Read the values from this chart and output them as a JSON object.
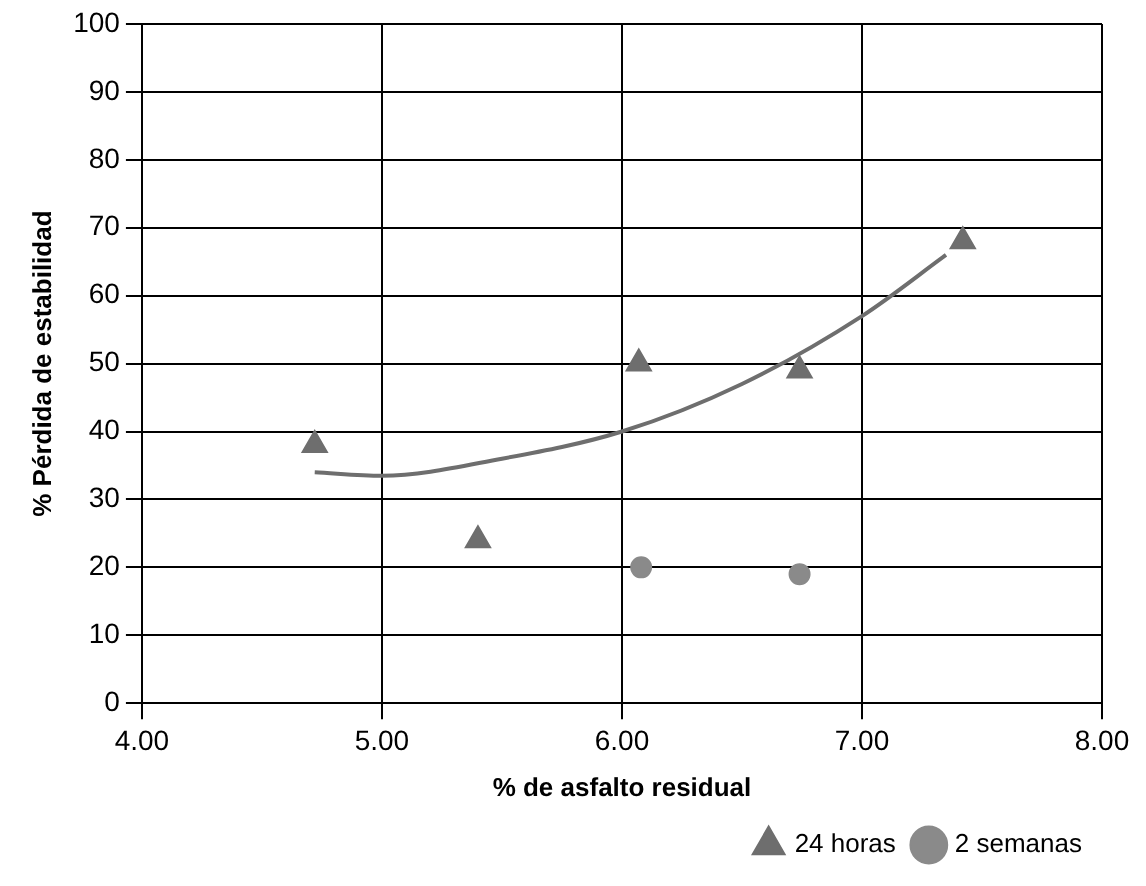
{
  "chart_data": {
    "type": "scatter",
    "xlabel": "% de asfalto residual",
    "ylabel": "% Pérdida de estabilidad",
    "xlim": [
      4,
      8
    ],
    "xticks": [
      {
        "value": 4,
        "label": "4.00"
      },
      {
        "value": 5,
        "label": "5.00"
      },
      {
        "value": 6,
        "label": "6.00"
      },
      {
        "value": 7,
        "label": "7.00"
      },
      {
        "value": 8,
        "label": "8.00"
      }
    ],
    "ylim": [
      0,
      100
    ],
    "yticks": [
      0,
      10,
      20,
      30,
      40,
      50,
      60,
      70,
      80,
      90,
      100
    ],
    "grid": true,
    "legend": "bottom right",
    "series": [
      {
        "name": "24 horas",
        "color": "#6e6e6e",
        "marker": "triangle",
        "x": [
          4.72,
          5.4,
          6.07,
          6.74,
          7.42
        ],
        "values": [
          38,
          24,
          50,
          49,
          68
        ]
      },
      {
        "name": "2 semanas",
        "color": "#8a8a8a",
        "marker": "circle",
        "x": [
          6.08,
          6.74
        ],
        "values": [
          20,
          19
        ]
      },
      {
        "type": "line",
        "color": "#6e6e6e",
        "marker": "none",
        "x": [
          4.72,
          5.0,
          5.5,
          6.0,
          6.5,
          7.0,
          7.35
        ],
        "values": [
          34,
          33.5,
          36,
          40,
          47,
          57,
          66
        ]
      }
    ]
  }
}
